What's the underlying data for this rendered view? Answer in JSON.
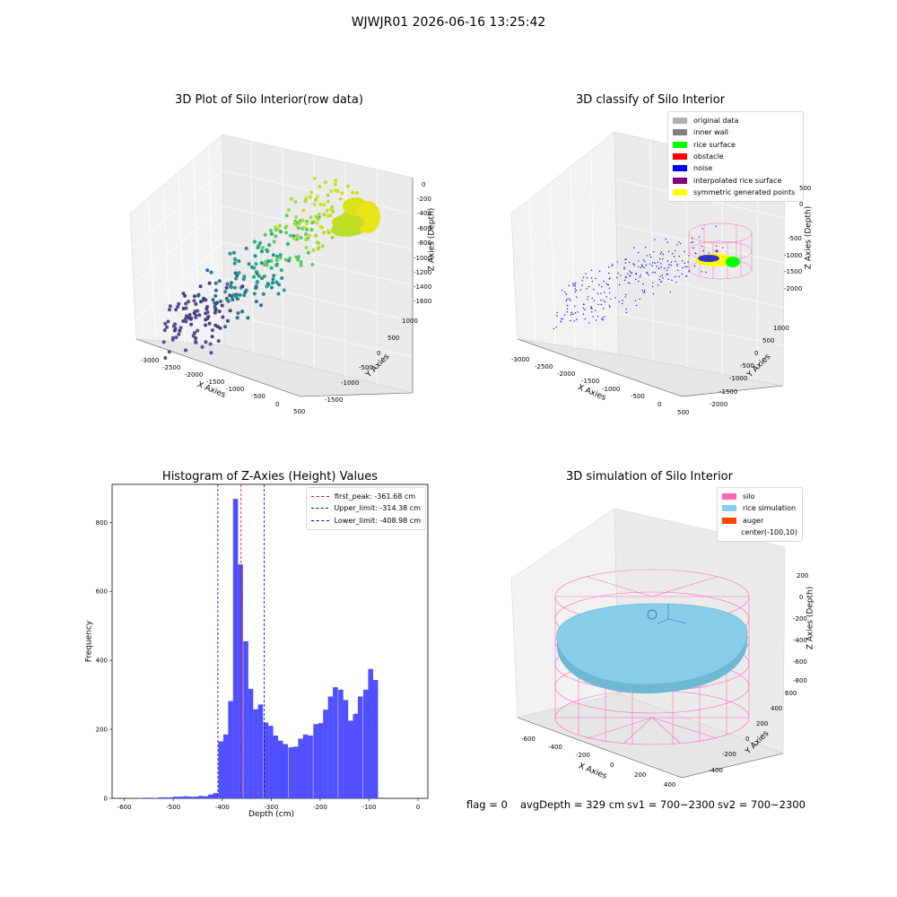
{
  "suptitle": "WJWJR01 2026-06-16 13:25:42",
  "status": {
    "flag": "flag = 0",
    "avg_depth": "avgDepth = 329 cm",
    "sv1": "sv1 = 700~2300",
    "sv2": "sv2 = 700~2300"
  },
  "colors": {
    "grey_pane": "#f2f2f2",
    "hist_bar": "#5050ff",
    "peak_line": "#ff0000",
    "limit_line": "#0000cc",
    "silo": "#ff69b4",
    "rice_simulation": "#87ceeb",
    "auger": "#ff4500",
    "noise": "#0000ff",
    "rice_surface": "#00ff00",
    "obstacle": "#ff0000",
    "symmetric": "#ffff00"
  },
  "panels": {
    "raw": {
      "title": "3D Plot of Silo Interior(row data)",
      "xlabel": "X Axies",
      "ylabel": "Y Axies",
      "zlabel": "Z Axies (Depth)",
      "xticks": [
        "-3000",
        "-2500",
        "-2000",
        "-1500",
        "-1000",
        "-500",
        "0",
        "500"
      ],
      "yticks": [
        "1000",
        "500",
        "0",
        "-500",
        "-1000",
        "-1500"
      ],
      "zticks": [
        "0",
        "-200",
        "-400",
        "-600",
        "-800",
        "-1000",
        "-1200",
        "-1400",
        "-1600"
      ]
    },
    "classify": {
      "title": "3D classify of Silo Interior",
      "xlabel": "X Axies",
      "ylabel": "Y Axies",
      "zlabel": "Z Axies (Depth)",
      "xticks": [
        "-3000",
        "-2500",
        "-2000",
        "-1500",
        "-1000",
        "-500",
        "0",
        "500"
      ],
      "yticks": [
        "1000",
        "500",
        "0",
        "-500",
        "-1000",
        "-1500",
        "-2000"
      ],
      "zticks": [
        "500",
        "0",
        "-500",
        "-1000",
        "-1500",
        "-2000"
      ],
      "legend": [
        {
          "label": "original data",
          "color": "#b0b0b0"
        },
        {
          "label": "inner wall",
          "color": "#808080"
        },
        {
          "label": "rice surface",
          "color": "#00ff00"
        },
        {
          "label": "obstacle",
          "color": "#ff0000"
        },
        {
          "label": "noise",
          "color": "#0000ff"
        },
        {
          "label": "interpolated rice surface",
          "color": "#800080"
        },
        {
          "label": "symmetric generated points",
          "color": "#ffff00"
        }
      ]
    },
    "simulation": {
      "title": "3D simulation of Silo Interior",
      "xlabel": "X Axies",
      "ylabel": "Y Axies",
      "zlabel": "Z Axies (Depth)",
      "xticks": [
        "-600",
        "-400",
        "-200",
        "0",
        "200",
        "400"
      ],
      "yticks": [
        "600",
        "400",
        "200",
        "0",
        "-200",
        "-400"
      ],
      "zticks": [
        "200",
        "0",
        "-200",
        "-400",
        "-600",
        "-800"
      ],
      "legend": [
        {
          "label": "silo",
          "color": "#ff69b4"
        },
        {
          "label": "rice simulation",
          "color": "#87ceeb"
        },
        {
          "label": "auger",
          "color": "#ff4500"
        },
        {
          "label": "center(-100,10)",
          "color": ""
        }
      ]
    }
  },
  "chart_data": {
    "type": "bar",
    "title": "Histogram of Z-Axies (Height) Values",
    "xlabel": "Depth (cm)",
    "ylabel": "Frequency",
    "xlim": [
      -625,
      20
    ],
    "ylim": [
      0,
      910
    ],
    "xticks": [
      -600,
      -500,
      -400,
      -300,
      -200,
      -100,
      0
    ],
    "yticks": [
      0,
      200,
      400,
      600,
      800
    ],
    "bin_width": 10.2,
    "bin_starts": [
      -612,
      -602,
      -592,
      -582,
      -572,
      -562,
      -551,
      -541,
      -531,
      -521,
      -510,
      -500,
      -490,
      -480,
      -470,
      -459,
      -449,
      -439,
      -429,
      -419,
      -408,
      -398,
      -388,
      -378,
      -368,
      -357,
      -347,
      -337,
      -327,
      -316,
      -306,
      -296,
      -286,
      -276,
      -265,
      -255,
      -245,
      -235,
      -225,
      -214,
      -204,
      -194,
      -184,
      -174,
      -163,
      -153,
      -143,
      -133,
      -123,
      -112,
      -102,
      -92,
      -82,
      -72,
      -61,
      -51,
      -41,
      -31,
      -21,
      -10
    ],
    "values": [
      0,
      0,
      0,
      0,
      1,
      2,
      2,
      1,
      3,
      3,
      3,
      5,
      5,
      6,
      5,
      5,
      7,
      6,
      11,
      15,
      165,
      185,
      282,
      868,
      678,
      455,
      317,
      258,
      272,
      220,
      210,
      182,
      167,
      157,
      148,
      150,
      173,
      185,
      182,
      215,
      218,
      257,
      295,
      322,
      315,
      285,
      225,
      245,
      295,
      315,
      375,
      343,
      0,
      0,
      0,
      0,
      0,
      0,
      0,
      0
    ],
    "reference_lines": [
      {
        "name": "first_peak: -361.68 cm",
        "x": -361.68,
        "color": "#ff0000"
      },
      {
        "name": "Upper_limit: -314.38 cm",
        "x": -314.38,
        "color": "#0000cc"
      },
      {
        "name": "Lower_limit: -408.98 cm",
        "x": -408.98,
        "color": "#0000cc"
      }
    ]
  }
}
